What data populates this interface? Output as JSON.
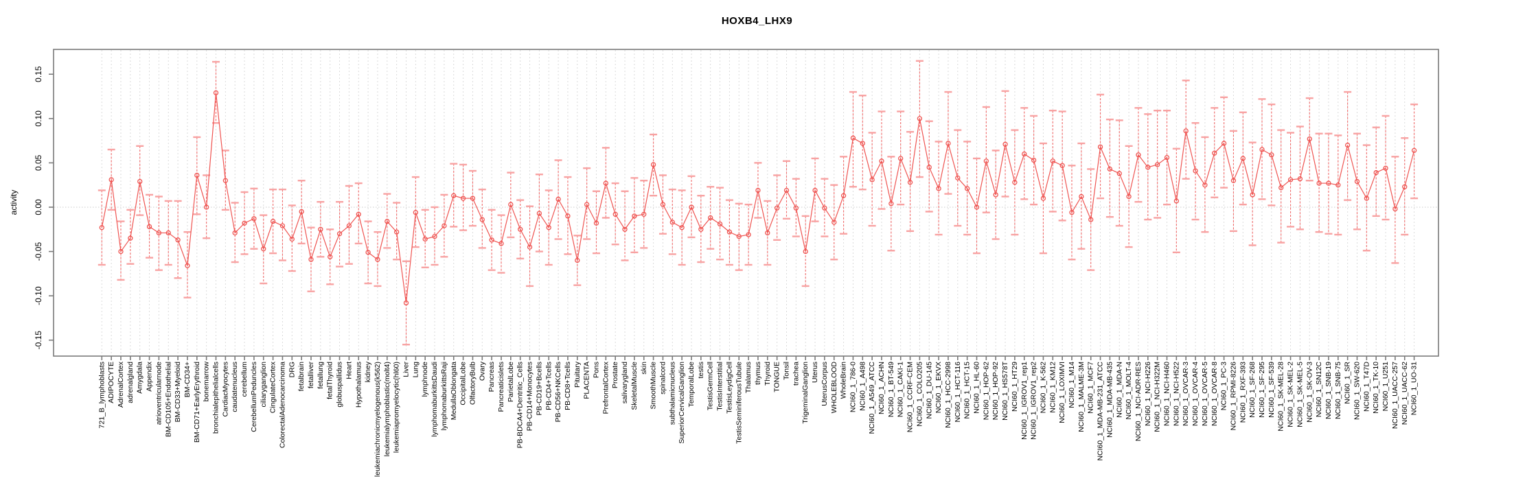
{
  "page": {
    "title": "HOXB4_LHX9"
  },
  "chart_data": {
    "type": "line",
    "title": "HOXB4_LHX9",
    "ylabel": "activity",
    "xlabel": "",
    "legend_position": "none",
    "error_bars": true,
    "marker": "open-circle",
    "grid": "vertical dashed gridline per category; dotted horizontal line at 0",
    "ylim": [
      -0.168,
      0.178
    ],
    "ytick_values": [
      -0.15,
      -0.1,
      -0.05,
      0.0,
      0.05,
      0.1,
      0.15
    ],
    "ytick_labels": [
      "-0.15",
      "-0.10",
      "-0.05",
      "0.00",
      "0.05",
      "0.10",
      "0.15"
    ],
    "colors": {
      "series_line": "#ef5350",
      "marker": "#ef5350",
      "error_bar_line": "#f26a6a",
      "error_bar_cap": "#f8a2a2",
      "gridline": "#dadada",
      "zero_line": "#c9c9c9",
      "plot_border": "#7a7a7a",
      "text": "#000000",
      "background": "#ffffff"
    },
    "categories": [
      "721_B_lymphoblasts",
      "ADIPOCYTE",
      "AdrenalCortex",
      "adrenalgland",
      "Amygdala",
      "Appendix",
      "atrioventricularnode",
      "BM-CD105+Endothelial",
      "BM-CD33+Myeloid",
      "BM-CD34+",
      "BM-CD71+EarlyErythroid",
      "bonemarrow",
      "bronchialepithelialcells",
      "CardiacMyocytes",
      "caudatenucleus",
      "cerebellum",
      "CerebellumPeduncles",
      "ciliaryganglion",
      "CingulateCortex",
      "ColorectalAdenocarcinoma",
      "DRG",
      "fetalbrain",
      "fetalliver",
      "fetallung",
      "fetalThyroid",
      "globuspallidus",
      "Heart",
      "Hypothalamus",
      "kidney",
      "leukemiachronicmyelogenous(k562)",
      "leukemialymphoblastic(molt4)",
      "leukemiapromyelocytic(hl60)",
      "Liver",
      "Lung",
      "lymphnode",
      "lymphomaburkittsDaudi",
      "lymphomaburkittsRaji",
      "MedullaOblongata",
      "OccipitalLobe",
      "OlfactoryBulb",
      "Ovary",
      "Pancreas",
      "Pancreaticislets",
      "ParietalLobe",
      "PB-BDCA4+Dentritic_Cells",
      "PB-CD14+Monocytes",
      "PB-CD19+Bcells",
      "PB-CD4+Tcells",
      "PB-CD56+NKCells",
      "PB-CD8+Tcells",
      "Pituitary",
      "PLACENTA",
      "Pons",
      "PrefrontalCortex",
      "Prostate",
      "salivarygland",
      "SkeletalMuscle",
      "skin",
      "SmoothMuscle",
      "spinalcord",
      "subthalamicnucleus",
      "SuperiorCervicalGanglion",
      "TemporalLobe",
      "testis",
      "TestisGermCell",
      "TestisInterstitial",
      "TestisLeydigCell",
      "TestisSeminiferousTubule",
      "Thalamus",
      "thymus",
      "Thyroid",
      "TONGUE",
      "Tonsil",
      "trachea",
      "TrigeminalGanglion",
      "Uterus",
      "UterusCorpus",
      "WHOLEBLOOD",
      "WholeBrain",
      "NCI60_1_786-0",
      "NCI60_1_A498",
      "NCI60_1_A549_ATCC",
      "NCI60_1_ACHN",
      "NCI60_1_BT-549",
      "NCI60_1_CAKI-1",
      "NCI60_1_CCRF-CEM",
      "NCI60_1_COLO205",
      "NCI60_1_DU-145",
      "NCI60_1_EKVX",
      "NCI60_1_HCC-2998",
      "NCI60_1_HCT-116",
      "NCI60_1_HCT-15",
      "NCI60_1_HL-60",
      "NCI60_1_HOP-62",
      "NCI60_1_HOP-92",
      "NCI60_1_HS578T",
      "NCI60_1_HT29",
      "NCI60_1_IGROV1_rep1",
      "NCI60_1_IGROV1_rep2",
      "NCI60_1_K-562",
      "NCI60_1_KM12",
      "NCI60_1_LOXIMVI",
      "NCI60_1_M14",
      "NCI60_1_MALME-3M",
      "NCI60_1_MCF7",
      "NCI60_1_MDA-MB-231_ATCC",
      "NCI60_1_MDA-MB-435",
      "NCI60_1_MDA-N",
      "NCI60_1_MOLT-4",
      "NCI60_1_NCI-ADR-RES",
      "NCI60_1_NCI-H226",
      "NCI60_1_NCI-H322M",
      "NCI60_1_NCI-H460",
      "NCI60_1_NCI-H522",
      "NCI60_1_OVCAR-3",
      "NCI60_1_OVCAR-4",
      "NCI60_1_OVCAR-5",
      "NCI60_1_OVCAR-8",
      "NCI60_1_PC-3",
      "NCI60_1_RPMI-8226",
      "NCI60_1_RXF-393",
      "NCI60_1_SF-268",
      "NCI60_1_SF-295",
      "NCI60_1_SF-539",
      "NCI60_1_SK-MEL-28",
      "NCI60_1_SK-MEL-2",
      "NCI60_1_SK-MEL-5",
      "NCI60_1_SK-OV-3",
      "NCI60_1_SN12C",
      "NCI60_1_SNB-19",
      "NCI60_1_SNB-75",
      "NCI60_1_SR",
      "NCI60_1_SW-620",
      "NCI60_1_T47D",
      "NCI60_1_TK-10",
      "NCI60_1_U251",
      "NCI60_1_UACC-257",
      "NCI60_1_UACC-62",
      "NCI60_1_UO-31"
    ],
    "series": [
      {
        "name": "activity",
        "values": [
          -0.023,
          0.031,
          -0.05,
          -0.035,
          0.029,
          -0.022,
          -0.029,
          -0.029,
          -0.037,
          -0.066,
          0.036,
          0.0,
          0.129,
          0.03,
          -0.029,
          -0.018,
          -0.013,
          -0.047,
          -0.016,
          -0.021,
          -0.036,
          -0.005,
          -0.059,
          -0.025,
          -0.056,
          -0.03,
          -0.021,
          -0.008,
          -0.051,
          -0.059,
          -0.016,
          -0.028,
          -0.108,
          -0.006,
          -0.036,
          -0.033,
          -0.021,
          0.013,
          0.01,
          0.01,
          -0.014,
          -0.037,
          -0.041,
          0.003,
          -0.025,
          -0.045,
          -0.007,
          -0.023,
          0.009,
          -0.01,
          -0.06,
          0.003,
          -0.018,
          0.027,
          -0.008,
          -0.025,
          -0.01,
          -0.008,
          0.048,
          0.003,
          -0.017,
          -0.023,
          0.0,
          -0.025,
          -0.012,
          -0.019,
          -0.028,
          -0.033,
          -0.031,
          0.019,
          -0.029,
          -0.001,
          0.019,
          -0.001,
          -0.05,
          0.019,
          -0.001,
          -0.017,
          0.013,
          0.078,
          0.072,
          0.031,
          0.052,
          0.004,
          0.055,
          0.028,
          0.1,
          0.045,
          0.021,
          0.072,
          0.033,
          0.021,
          0.0,
          0.052,
          0.014,
          0.071,
          0.028,
          0.06,
          0.053,
          0.01,
          0.052,
          0.047,
          -0.006,
          0.012,
          -0.014,
          0.068,
          0.043,
          0.038,
          0.012,
          0.059,
          0.045,
          0.048,
          0.056,
          0.007,
          0.086,
          0.041,
          0.025,
          0.061,
          0.072,
          0.03,
          0.055,
          0.014,
          0.065,
          0.059,
          0.022,
          0.031,
          0.032,
          0.077,
          0.027,
          0.027,
          0.025,
          0.07,
          0.029,
          0.01,
          0.039,
          0.044,
          -0.002,
          0.023,
          0.064
        ],
        "error_high": [
          0.019,
          0.065,
          -0.016,
          -0.003,
          0.069,
          0.014,
          0.012,
          0.007,
          0.007,
          -0.028,
          0.079,
          0.036,
          0.164,
          0.064,
          0.005,
          0.017,
          0.021,
          -0.009,
          0.02,
          0.02,
          0.002,
          0.03,
          -0.023,
          0.006,
          -0.025,
          0.006,
          0.024,
          0.027,
          -0.016,
          -0.028,
          0.015,
          0.005,
          -0.061,
          0.034,
          -0.003,
          0.0,
          0.014,
          0.049,
          0.048,
          0.041,
          0.02,
          -0.003,
          -0.009,
          0.039,
          0.008,
          0.001,
          0.037,
          0.019,
          0.053,
          0.034,
          -0.032,
          0.044,
          0.018,
          0.067,
          0.027,
          0.018,
          0.033,
          0.03,
          0.082,
          0.036,
          0.02,
          0.019,
          0.035,
          0.013,
          0.023,
          0.022,
          0.008,
          0.004,
          0.003,
          0.05,
          0.007,
          0.036,
          0.052,
          0.032,
          -0.01,
          0.055,
          0.032,
          0.025,
          0.057,
          0.13,
          0.126,
          0.084,
          0.108,
          0.057,
          0.108,
          0.085,
          0.165,
          0.097,
          0.074,
          0.13,
          0.087,
          0.074,
          0.055,
          0.113,
          0.064,
          0.131,
          0.087,
          0.112,
          0.103,
          0.072,
          0.109,
          0.108,
          0.047,
          0.072,
          0.043,
          0.127,
          0.099,
          0.098,
          0.069,
          0.112,
          0.105,
          0.109,
          0.109,
          0.066,
          0.143,
          0.095,
          0.079,
          0.112,
          0.124,
          0.086,
          0.107,
          0.073,
          0.122,
          0.116,
          0.087,
          0.084,
          0.091,
          0.123,
          0.083,
          0.083,
          0.081,
          0.13,
          0.083,
          0.07,
          0.09,
          0.103,
          0.057,
          0.078,
          0.116
        ],
        "error_low": [
          -0.065,
          -0.003,
          -0.082,
          -0.064,
          -0.009,
          -0.057,
          -0.071,
          -0.065,
          -0.08,
          -0.102,
          -0.008,
          -0.035,
          0.095,
          -0.003,
          -0.062,
          -0.053,
          -0.047,
          -0.086,
          -0.052,
          -0.06,
          -0.072,
          -0.041,
          -0.095,
          -0.056,
          -0.087,
          -0.067,
          -0.064,
          -0.041,
          -0.086,
          -0.089,
          -0.046,
          -0.059,
          -0.155,
          -0.045,
          -0.068,
          -0.065,
          -0.056,
          -0.022,
          -0.026,
          -0.021,
          -0.046,
          -0.071,
          -0.074,
          -0.034,
          -0.058,
          -0.089,
          -0.05,
          -0.065,
          -0.036,
          -0.053,
          -0.088,
          -0.036,
          -0.052,
          -0.012,
          -0.042,
          -0.06,
          -0.051,
          -0.046,
          0.013,
          -0.03,
          -0.053,
          -0.065,
          -0.034,
          -0.062,
          -0.047,
          -0.059,
          -0.065,
          -0.071,
          -0.065,
          -0.012,
          -0.065,
          -0.037,
          -0.013,
          -0.033,
          -0.089,
          -0.016,
          -0.033,
          -0.059,
          -0.03,
          0.023,
          0.02,
          -0.021,
          -0.002,
          -0.049,
          0.003,
          -0.027,
          0.034,
          -0.005,
          -0.031,
          0.015,
          -0.021,
          -0.031,
          -0.052,
          -0.006,
          -0.036,
          0.012,
          -0.031,
          0.009,
          0.003,
          -0.052,
          -0.005,
          -0.015,
          -0.059,
          -0.047,
          -0.071,
          0.01,
          -0.011,
          -0.021,
          -0.045,
          0.006,
          -0.014,
          -0.012,
          0.003,
          -0.051,
          0.032,
          -0.014,
          -0.028,
          0.011,
          0.022,
          -0.027,
          0.003,
          -0.043,
          0.009,
          0.002,
          -0.04,
          -0.022,
          -0.025,
          0.03,
          -0.028,
          -0.03,
          -0.031,
          0.008,
          -0.025,
          -0.049,
          -0.01,
          -0.014,
          -0.063,
          -0.031,
          0.01
        ]
      }
    ]
  }
}
